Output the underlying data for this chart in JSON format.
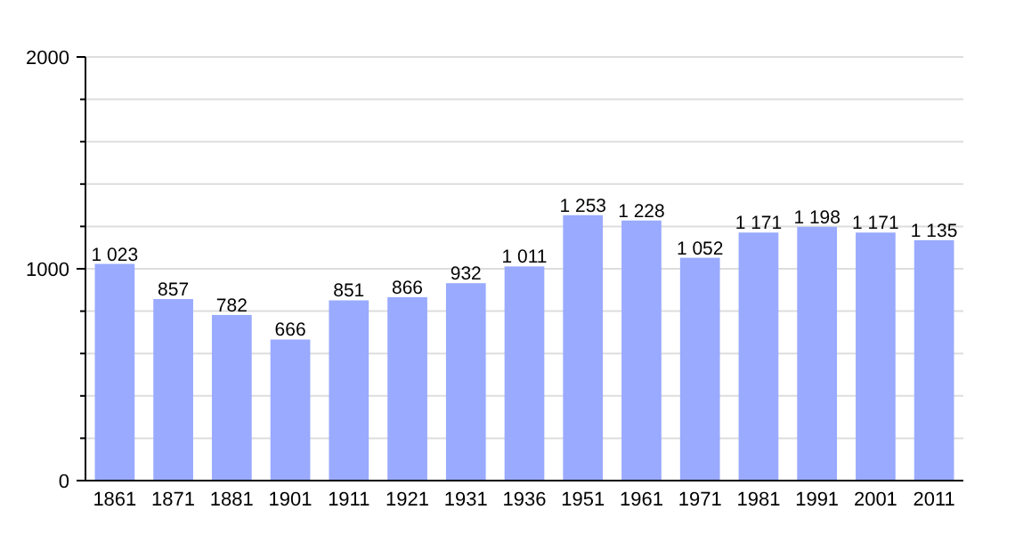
{
  "chart_data": {
    "type": "bar",
    "categories": [
      "1861",
      "1871",
      "1881",
      "1901",
      "1911",
      "1921",
      "1931",
      "1936",
      "1951",
      "1961",
      "1971",
      "1981",
      "1991",
      "2001",
      "2011"
    ],
    "values": [
      1023,
      857,
      782,
      666,
      851,
      866,
      932,
      1011,
      1253,
      1228,
      1052,
      1171,
      1198,
      1171,
      1135
    ],
    "value_labels": [
      "1 023",
      "857",
      "782",
      "666",
      "851",
      "866",
      "932",
      "1 011",
      "1 253",
      "1 228",
      "1 052",
      "1 171",
      "1 198",
      "1 171",
      "1 135"
    ],
    "color": "#99aaff",
    "ylim": [
      0,
      2000
    ],
    "yticks": [
      0,
      {
        "value": 200,
        "label": null
      },
      {
        "value": 400,
        "label": null
      },
      {
        "value": 600,
        "label": null
      },
      {
        "value": 800,
        "label": null
      },
      1000,
      {
        "value": 1200,
        "label": null
      },
      {
        "value": 1400,
        "label": null
      },
      {
        "value": 1600,
        "label": null
      },
      {
        "value": 1800,
        "label": null
      },
      2000
    ],
    "grid": "y"
  }
}
